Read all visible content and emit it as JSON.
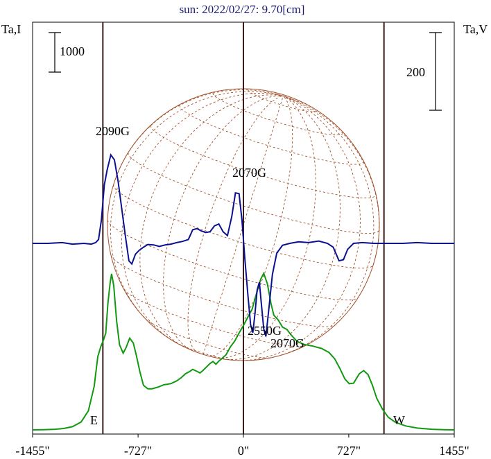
{
  "chart_data": {
    "type": "line",
    "title": "sun: 2022/02/27: 9.70[cm]",
    "ylabel_left": "Ta,I",
    "ylabel_right": "Ta,V",
    "xlim": [
      -1455,
      1455
    ],
    "x_ticks": [
      "-1455\"",
      "-727\"",
      "0\"",
      "727\"",
      "1455\""
    ],
    "x_tick_values": [
      -1455,
      -727,
      0,
      727,
      1455
    ],
    "limb_markers": [
      {
        "label": "E",
        "x": -970
      },
      {
        "label": "W",
        "x": 970
      }
    ],
    "scale_bars": [
      {
        "label": "1000",
        "side": "left"
      },
      {
        "label": "200",
        "side": "right"
      }
    ],
    "annotations": [
      {
        "text": "2090G",
        "x": -880
      },
      {
        "text": "2070G",
        "x": 70
      },
      {
        "text": "2550G",
        "x": 180
      },
      {
        "text": "2070G",
        "x": 340
      }
    ],
    "series": [
      {
        "name": "I",
        "color": "#119911",
        "axis": "left",
        "points": [
          [
            -1455,
            0
          ],
          [
            -1380,
            5
          ],
          [
            -1300,
            15
          ],
          [
            -1240,
            35
          ],
          [
            -1180,
            80
          ],
          [
            -1120,
            200
          ],
          [
            -1070,
            480
          ],
          [
            -1030,
            1100
          ],
          [
            -1005,
            1850
          ],
          [
            -985,
            2100
          ],
          [
            -965,
            2280
          ],
          [
            -950,
            2450
          ],
          [
            -935,
            3200
          ],
          [
            -920,
            3720
          ],
          [
            -910,
            3950
          ],
          [
            -895,
            3650
          ],
          [
            -875,
            2750
          ],
          [
            -855,
            2150
          ],
          [
            -830,
            1940
          ],
          [
            -810,
            2080
          ],
          [
            -785,
            2320
          ],
          [
            -760,
            2200
          ],
          [
            -740,
            1900
          ],
          [
            -715,
            1480
          ],
          [
            -690,
            1130
          ],
          [
            -660,
            1040
          ],
          [
            -630,
            1040
          ],
          [
            -590,
            1080
          ],
          [
            -550,
            1140
          ],
          [
            -500,
            1170
          ],
          [
            -460,
            1240
          ],
          [
            -430,
            1320
          ],
          [
            -400,
            1420
          ],
          [
            -370,
            1480
          ],
          [
            -350,
            1530
          ],
          [
            -320,
            1480
          ],
          [
            -300,
            1440
          ],
          [
            -280,
            1500
          ],
          [
            -250,
            1610
          ],
          [
            -230,
            1680
          ],
          [
            -210,
            1730
          ],
          [
            -190,
            1660
          ],
          [
            -170,
            1740
          ],
          [
            -150,
            1800
          ],
          [
            -120,
            1900
          ],
          [
            -90,
            2100
          ],
          [
            -60,
            2250
          ],
          [
            -30,
            2450
          ],
          [
            0,
            2640
          ],
          [
            30,
            2850
          ],
          [
            60,
            3050
          ],
          [
            90,
            3450
          ],
          [
            120,
            3820
          ],
          [
            140,
            3960
          ],
          [
            165,
            3700
          ],
          [
            190,
            3200
          ],
          [
            210,
            2900
          ],
          [
            240,
            2780
          ],
          [
            270,
            2600
          ],
          [
            300,
            2540
          ],
          [
            330,
            2400
          ],
          [
            370,
            2240
          ],
          [
            420,
            2160
          ],
          [
            480,
            2120
          ],
          [
            540,
            2060
          ],
          [
            590,
            1960
          ],
          [
            630,
            1800
          ],
          [
            665,
            1560
          ],
          [
            700,
            1290
          ],
          [
            730,
            1170
          ],
          [
            760,
            1180
          ],
          [
            800,
            1420
          ],
          [
            830,
            1500
          ],
          [
            860,
            1400
          ],
          [
            890,
            1130
          ],
          [
            920,
            800
          ],
          [
            960,
            520
          ],
          [
            1000,
            320
          ],
          [
            1050,
            190
          ],
          [
            1120,
            100
          ],
          [
            1200,
            45
          ],
          [
            1300,
            15
          ],
          [
            1380,
            5
          ],
          [
            1455,
            0
          ]
        ]
      },
      {
        "name": "V",
        "color": "#0b1090",
        "axis": "right",
        "points": [
          [
            -1455,
            0
          ],
          [
            -1350,
            0
          ],
          [
            -1250,
            2
          ],
          [
            -1180,
            -2
          ],
          [
            -1100,
            0
          ],
          [
            -1050,
            -2
          ],
          [
            -1020,
            2
          ],
          [
            -1000,
            10
          ],
          [
            -980,
            60
          ],
          [
            -960,
            150
          ],
          [
            -940,
            190
          ],
          [
            -915,
            228
          ],
          [
            -890,
            215
          ],
          [
            -865,
            160
          ],
          [
            -840,
            90
          ],
          [
            -815,
            20
          ],
          [
            -790,
            -45
          ],
          [
            -770,
            -53
          ],
          [
            -745,
            -28
          ],
          [
            -720,
            -18
          ],
          [
            -690,
            -10
          ],
          [
            -660,
            -3
          ],
          [
            -620,
            -4
          ],
          [
            -580,
            -8
          ],
          [
            -540,
            -4
          ],
          [
            -500,
            -2
          ],
          [
            -460,
            2
          ],
          [
            -420,
            5
          ],
          [
            -380,
            10
          ],
          [
            -350,
            35
          ],
          [
            -320,
            38
          ],
          [
            -290,
            32
          ],
          [
            -260,
            28
          ],
          [
            -230,
            30
          ],
          [
            -200,
            45
          ],
          [
            -170,
            50
          ],
          [
            -140,
            30
          ],
          [
            -110,
            20
          ],
          [
            -80,
            70
          ],
          [
            -55,
            130
          ],
          [
            -30,
            128
          ],
          [
            -10,
            60
          ],
          [
            10,
            -40
          ],
          [
            30,
            -130
          ],
          [
            50,
            -210
          ],
          [
            65,
            -230
          ],
          [
            80,
            -180
          ],
          [
            95,
            -120
          ],
          [
            110,
            -100
          ],
          [
            125,
            -160
          ],
          [
            140,
            -220
          ],
          [
            155,
            -240
          ],
          [
            175,
            -170
          ],
          [
            200,
            -80
          ],
          [
            230,
            -25
          ],
          [
            270,
            -5
          ],
          [
            320,
            0
          ],
          [
            380,
            4
          ],
          [
            450,
            2
          ],
          [
            520,
            6
          ],
          [
            580,
            0
          ],
          [
            620,
            -10
          ],
          [
            660,
            -45
          ],
          [
            690,
            -42
          ],
          [
            720,
            -15
          ],
          [
            760,
            0
          ],
          [
            820,
            2
          ],
          [
            900,
            0
          ],
          [
            1000,
            0
          ],
          [
            1100,
            0
          ],
          [
            1200,
            2
          ],
          [
            1300,
            0
          ],
          [
            1455,
            0
          ]
        ]
      }
    ],
    "grid": false,
    "background_disk": {
      "description_color": "#a0522d"
    }
  }
}
